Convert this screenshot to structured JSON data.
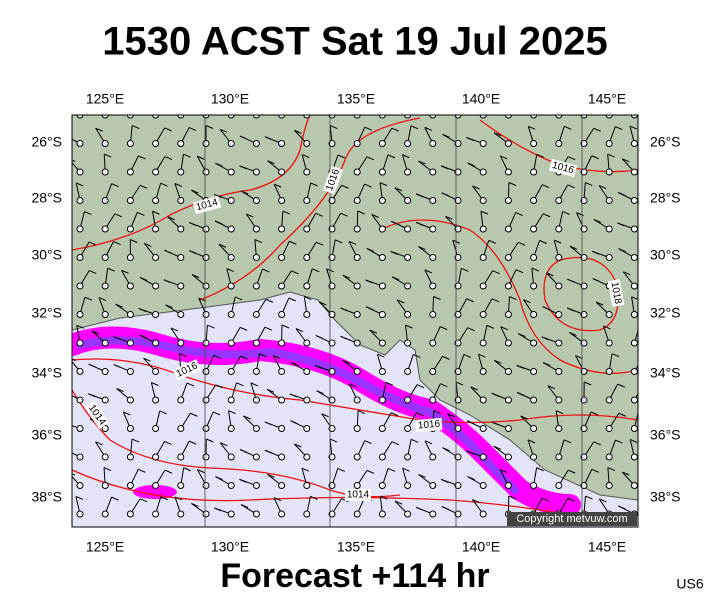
{
  "title": "1530 ACST Sat 19 Jul 2025",
  "footer": "Forecast +114 hr",
  "code": "US6",
  "copyright": "Copyright metvuw.com",
  "longitude_labels": [
    "125°E",
    "130°E",
    "135°E",
    "140°E",
    "145°E"
  ],
  "latitude_labels": [
    "26°S",
    "28°S",
    "30°S",
    "32°S",
    "34°S",
    "36°S",
    "38°S"
  ],
  "isobar_labels": [
    "1014",
    "1016",
    "1016",
    "1018",
    "1016",
    "1014",
    "1016",
    "1014"
  ]
}
